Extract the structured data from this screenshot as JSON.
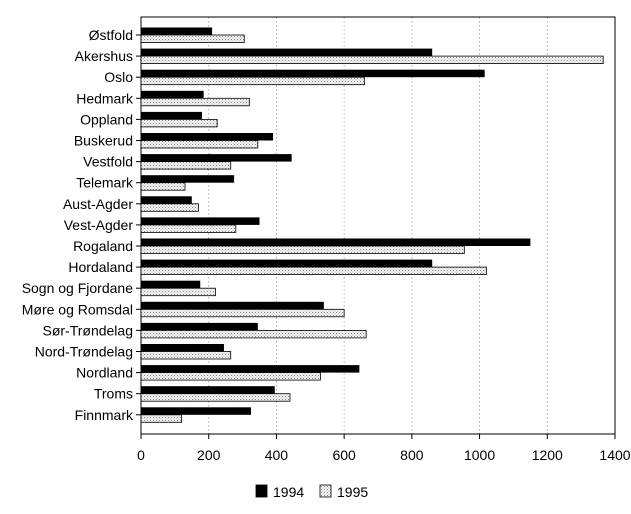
{
  "chart_data": {
    "type": "bar",
    "orientation": "horizontal",
    "title": "",
    "xlabel": "",
    "ylabel": "",
    "xlim": [
      0,
      1400
    ],
    "x_ticks": [
      0,
      200,
      400,
      600,
      800,
      1000,
      1200,
      1400
    ],
    "grid": "vertical dotted",
    "legend_position": "bottom-center",
    "categories": [
      "Østfold",
      "Akershus",
      "Oslo",
      "Hedmark",
      "Oppland",
      "Buskerud",
      "Vestfold",
      "Telemark",
      "Aust-Agder",
      "Vest-Agder",
      "Rogaland",
      "Hordaland",
      "Sogn og Fjordane",
      "Møre og Romsdal",
      "Sør-Trøndelag",
      "Nord-Trøndelag",
      "Nordland",
      "Troms",
      "Finnmark"
    ],
    "series": [
      {
        "name": "1994",
        "color": "#000000",
        "values": [
          210,
          860,
          1015,
          185,
          180,
          390,
          445,
          275,
          150,
          350,
          1150,
          860,
          175,
          540,
          345,
          245,
          645,
          395,
          325
        ]
      },
      {
        "name": "1995",
        "color": "#e2e2e2",
        "pattern": "dotted",
        "values": [
          305,
          1365,
          660,
          320,
          225,
          345,
          265,
          130,
          170,
          280,
          955,
          1020,
          220,
          600,
          665,
          265,
          530,
          440,
          120
        ]
      }
    ]
  }
}
